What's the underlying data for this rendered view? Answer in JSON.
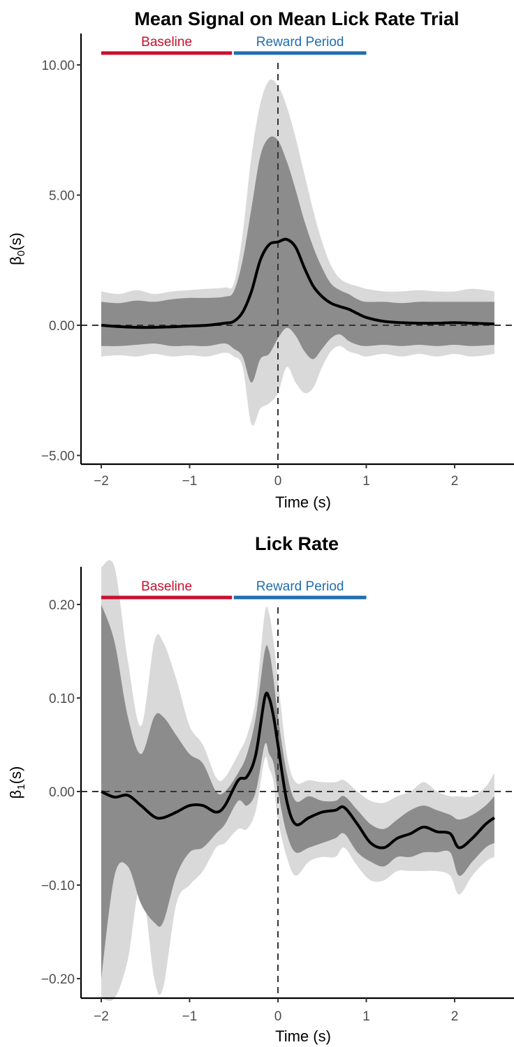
{
  "colors": {
    "baseline": "#C8102E",
    "reward": "#1F6DB0",
    "outer_band": "#D9D9D9",
    "inner_band": "#8C8C8C",
    "line": "#000000",
    "ref_line": "#333333"
  },
  "chart_data": [
    {
      "type": "line",
      "title": "Mean Signal on Mean Lick Rate Trial",
      "xlabel": "Time (s)",
      "ylabel": "β0(s)",
      "ylabel_main": "β",
      "ylabel_sub": "0",
      "ylabel_tail": "(s)",
      "xlim": [
        -2.2,
        2.65
      ],
      "ylim": [
        -5.3,
        11.2
      ],
      "xticks": [
        -2,
        -1,
        0,
        1,
        2
      ],
      "xtick_labels": [
        "−2",
        "−1",
        "0",
        "1",
        "2"
      ],
      "yticks": [
        10,
        5,
        0,
        -5
      ],
      "ytick_labels": [
        "10.00",
        "5.00",
        "0.00",
        "−5.00"
      ],
      "ref_lines": {
        "h": 0,
        "v": 0
      },
      "annotations": [
        {
          "label": "Baseline",
          "x_start": -2.0,
          "x_end": -0.52,
          "color": "#C8102E"
        },
        {
          "label": "Reward Period",
          "x_start": -0.5,
          "x_end": 1.0,
          "color": "#1F6DB0"
        }
      ],
      "x": [
        -2.0,
        -1.8,
        -1.6,
        -1.4,
        -1.2,
        -1.0,
        -0.8,
        -0.6,
        -0.5,
        -0.4,
        -0.3,
        -0.2,
        -0.1,
        0.0,
        0.1,
        0.2,
        0.3,
        0.4,
        0.5,
        0.6,
        0.7,
        0.8,
        0.9,
        1.0,
        1.2,
        1.4,
        1.6,
        1.8,
        2.0,
        2.2,
        2.45
      ],
      "series": [
        {
          "name": "estimate",
          "values": [
            0.0,
            -0.05,
            -0.08,
            -0.08,
            -0.06,
            -0.03,
            0.0,
            0.08,
            0.15,
            0.5,
            1.3,
            2.5,
            3.1,
            3.2,
            3.3,
            3.0,
            2.2,
            1.5,
            1.1,
            0.85,
            0.72,
            0.62,
            0.45,
            0.3,
            0.15,
            0.1,
            0.08,
            0.08,
            0.1,
            0.08,
            0.05
          ]
        },
        {
          "name": "inner_upper",
          "values": [
            0.9,
            0.85,
            0.95,
            0.9,
            1.0,
            1.05,
            1.05,
            1.1,
            1.3,
            2.5,
            4.5,
            6.5,
            7.2,
            7.1,
            6.3,
            5.2,
            4.0,
            3.0,
            2.2,
            1.6,
            1.35,
            1.2,
            1.0,
            0.9,
            0.9,
            0.85,
            0.9,
            0.9,
            0.9,
            0.9,
            0.9
          ]
        },
        {
          "name": "inner_lower",
          "values": [
            -0.8,
            -0.8,
            -0.75,
            -0.7,
            -0.8,
            -0.78,
            -0.8,
            -0.7,
            -0.9,
            -1.2,
            -2.2,
            -1.3,
            -1.1,
            -0.5,
            -0.1,
            -0.4,
            -1.0,
            -1.3,
            -0.9,
            -0.5,
            -0.35,
            -0.6,
            -0.75,
            -0.8,
            -0.75,
            -0.8,
            -0.75,
            -0.8,
            -0.75,
            -0.8,
            -0.75
          ]
        },
        {
          "name": "outer_upper",
          "values": [
            1.3,
            1.2,
            1.35,
            1.2,
            1.3,
            1.35,
            1.4,
            1.45,
            1.6,
            3.5,
            6.5,
            8.5,
            9.4,
            9.2,
            8.4,
            7.2,
            5.8,
            4.4,
            3.2,
            2.3,
            1.8,
            1.6,
            1.5,
            1.4,
            1.3,
            1.3,
            1.35,
            1.3,
            1.3,
            1.4,
            1.3
          ]
        },
        {
          "name": "outer_lower",
          "values": [
            -1.2,
            -1.15,
            -1.2,
            -1.1,
            -1.2,
            -1.15,
            -1.2,
            -1.05,
            -1.2,
            -1.6,
            -3.8,
            -3.2,
            -3.0,
            -2.6,
            -1.6,
            -2.2,
            -2.6,
            -2.4,
            -1.6,
            -1.0,
            -0.8,
            -1.0,
            -1.1,
            -1.2,
            -1.1,
            -1.2,
            -1.1,
            -1.2,
            -1.1,
            -1.2,
            -1.1
          ]
        }
      ]
    },
    {
      "type": "line",
      "title": "Lick Rate",
      "xlabel": "Time (s)",
      "ylabel": "β1(s)",
      "ylabel_main": "β",
      "ylabel_sub": "1",
      "ylabel_tail": "(s)",
      "xlim": [
        -2.2,
        2.65
      ],
      "ylim": [
        -0.22,
        0.24
      ],
      "xticks": [
        -2,
        -1,
        0,
        1,
        2
      ],
      "xtick_labels": [
        "−2",
        "−1",
        "0",
        "1",
        "2"
      ],
      "yticks": [
        0.2,
        0.1,
        0.0,
        -0.1,
        -0.2
      ],
      "ytick_labels": [
        "0.20",
        "0.10",
        "0.00",
        "−0.10",
        "−0.20"
      ],
      "ref_lines": {
        "h": 0,
        "v": 0
      },
      "annotations": [
        {
          "label": "Baseline",
          "x_start": -2.0,
          "x_end": -0.52,
          "color": "#C8102E"
        },
        {
          "label": "Reward Period",
          "x_start": -0.5,
          "x_end": 1.0,
          "color": "#1F6DB0"
        }
      ],
      "x": [
        -2.0,
        -1.85,
        -1.7,
        -1.55,
        -1.4,
        -1.3,
        -1.15,
        -1.0,
        -0.85,
        -0.7,
        -0.6,
        -0.45,
        -0.35,
        -0.25,
        -0.15,
        -0.1,
        -0.05,
        0.0,
        0.1,
        0.2,
        0.35,
        0.5,
        0.65,
        0.75,
        0.9,
        1.05,
        1.2,
        1.35,
        1.5,
        1.65,
        1.8,
        1.95,
        2.05,
        2.2,
        2.35,
        2.45
      ],
      "series": [
        {
          "name": "estimate",
          "values": [
            0.0,
            -0.006,
            -0.004,
            -0.015,
            -0.027,
            -0.028,
            -0.022,
            -0.015,
            -0.015,
            -0.022,
            -0.015,
            0.012,
            0.016,
            0.04,
            0.1,
            0.1,
            0.08,
            0.05,
            -0.01,
            -0.035,
            -0.028,
            -0.022,
            -0.02,
            -0.017,
            -0.035,
            -0.055,
            -0.06,
            -0.05,
            -0.045,
            -0.038,
            -0.043,
            -0.045,
            -0.06,
            -0.05,
            -0.035,
            -0.028
          ]
        },
        {
          "name": "inner_upper",
          "values": [
            0.2,
            0.16,
            0.08,
            0.04,
            0.08,
            0.08,
            0.06,
            0.04,
            0.03,
            0.0,
            0.0,
            0.02,
            0.04,
            0.08,
            0.15,
            0.15,
            0.12,
            0.08,
            0.02,
            -0.01,
            -0.005,
            -0.01,
            -0.01,
            -0.005,
            -0.02,
            -0.035,
            -0.04,
            -0.03,
            -0.02,
            -0.015,
            -0.02,
            -0.025,
            -0.03,
            -0.025,
            -0.015,
            -0.005
          ]
        },
        {
          "name": "inner_lower",
          "values": [
            -0.2,
            -0.09,
            -0.08,
            -0.12,
            -0.14,
            -0.14,
            -0.09,
            -0.065,
            -0.06,
            -0.045,
            -0.035,
            -0.01,
            -0.015,
            0.0,
            0.05,
            0.04,
            0.03,
            0.0,
            -0.045,
            -0.065,
            -0.06,
            -0.055,
            -0.05,
            -0.045,
            -0.065,
            -0.075,
            -0.08,
            -0.07,
            -0.07,
            -0.065,
            -0.065,
            -0.065,
            -0.09,
            -0.075,
            -0.06,
            -0.055
          ]
        },
        {
          "name": "outer_upper",
          "values": [
            0.24,
            0.24,
            0.14,
            0.07,
            0.16,
            0.16,
            0.12,
            0.07,
            0.05,
            0.015,
            0.015,
            0.04,
            0.06,
            0.1,
            0.19,
            0.19,
            0.16,
            0.12,
            0.04,
            0.01,
            0.012,
            0.01,
            0.01,
            0.012,
            0.0,
            -0.01,
            -0.012,
            -0.005,
            0.0,
            0.01,
            0.0,
            -0.005,
            -0.005,
            -0.005,
            0.005,
            0.02
          ]
        },
        {
          "name": "outer_lower",
          "values": [
            -0.24,
            -0.24,
            -0.18,
            -0.1,
            -0.2,
            -0.21,
            -0.12,
            -0.1,
            -0.085,
            -0.06,
            -0.055,
            -0.04,
            -0.04,
            -0.02,
            0.035,
            0.025,
            0.01,
            -0.03,
            -0.07,
            -0.09,
            -0.075,
            -0.07,
            -0.07,
            -0.06,
            -0.08,
            -0.095,
            -0.095,
            -0.085,
            -0.085,
            -0.085,
            -0.085,
            -0.09,
            -0.11,
            -0.09,
            -0.075,
            -0.07
          ]
        }
      ]
    }
  ]
}
